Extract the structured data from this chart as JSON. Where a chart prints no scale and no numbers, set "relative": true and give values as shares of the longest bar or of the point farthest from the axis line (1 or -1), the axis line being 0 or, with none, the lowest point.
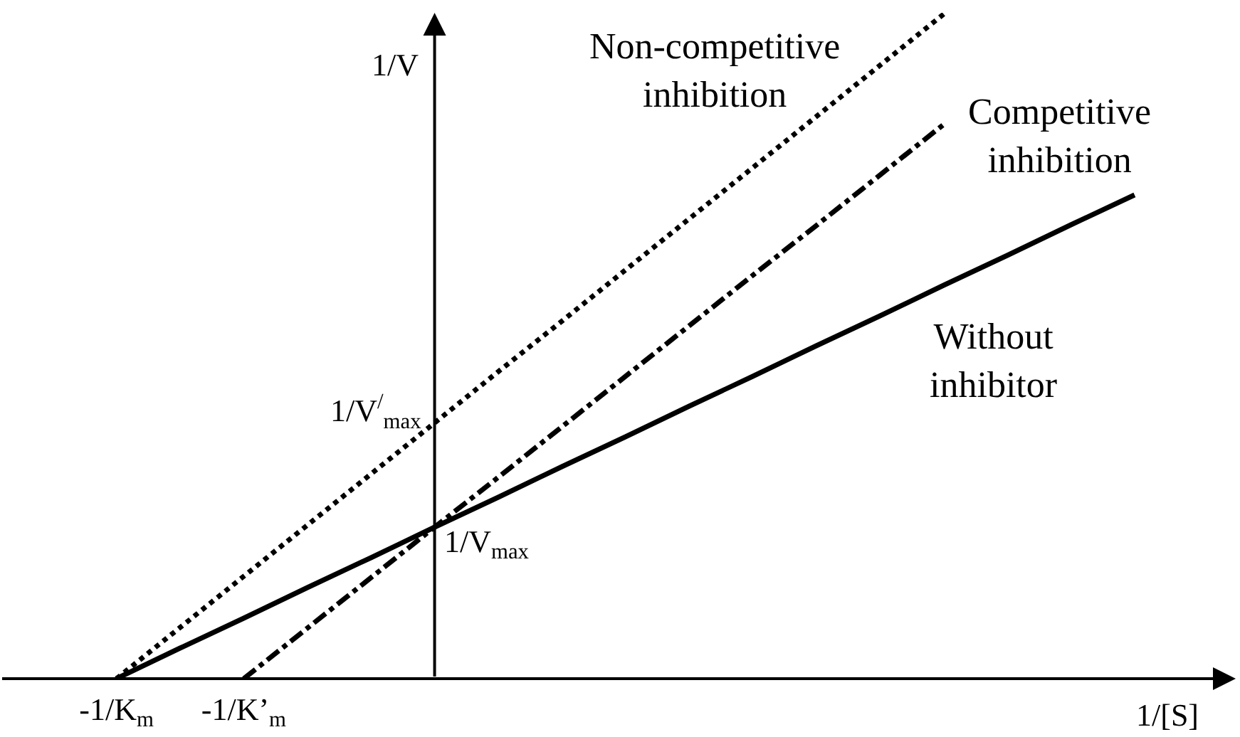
{
  "chart_data": {
    "type": "line",
    "relative": true,
    "xlabel": "1/[S]",
    "ylabel": "1/V",
    "tick_labels": "x",
    "legend": false,
    "categories": [
      "-1/K$_{m}$",
      null,
      "-1/K’$_{m}$",
      null,
      null,
      null,
      null,
      null,
      null,
      null,
      null,
      null,
      null,
      null,
      null,
      null,
      null
    ],
    "series": [
      {
        "name": "Non-competitive inhibition",
        "color": "#000000",
        "line_style": "dotted",
        "values": [
          0,
          0.077,
          0.154,
          0.231,
          0.308,
          0.385,
          0.462,
          0.538,
          0.615,
          0.692,
          0.769,
          0.846,
          0.923,
          1,
          null,
          null,
          null
        ]
      },
      {
        "name": "Competitive inhibition",
        "color": "#000000",
        "line_style": "dashdot",
        "values": [
          null,
          null,
          0,
          0.076,
          0.152,
          0.228,
          0.303,
          0.379,
          0.455,
          0.531,
          0.607,
          0.682,
          0.758,
          0.834,
          null,
          null,
          null
        ]
      },
      {
        "name": "Without inhibitor",
        "color": "#000000",
        "line_style": "solid",
        "values": [
          0,
          0.046,
          0.091,
          0.137,
          0.182,
          0.228,
          0.273,
          0.319,
          0.364,
          0.41,
          0.455,
          0.501,
          0.546,
          0.592,
          0.637,
          0.683,
          0.728
        ]
      }
    ],
    "annotations": [
      "1/V$^{/}$$_{max}$",
      "1/V$_{max}$"
    ]
  }
}
